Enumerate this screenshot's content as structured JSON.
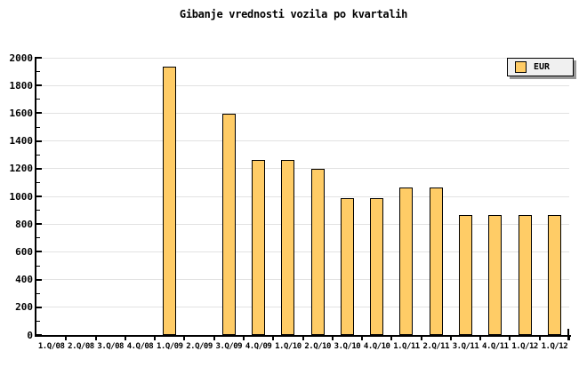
{
  "chart_data": {
    "type": "bar",
    "title": "Gibanje vrednosti vozila po kvartalih",
    "categories": [
      "1.Q/08",
      "2.Q/08",
      "3.Q/08",
      "4.Q/08",
      "1.Q/09",
      "2.Q/09",
      "3.Q/09",
      "4.Q/09",
      "1.Q/10",
      "2.Q/10",
      "3.Q/10",
      "4.Q/10",
      "1.Q/11",
      "2.Q/11",
      "3.Q/11",
      "4.Q/11",
      "1.Q/12",
      "1.Q/12"
    ],
    "series": [
      {
        "name": "EUR",
        "values": [
          null,
          null,
          null,
          null,
          1935,
          null,
          1595,
          1265,
          1265,
          1200,
          990,
          990,
          1065,
          1065,
          865,
          865,
          865,
          865
        ]
      }
    ],
    "xlabel": "",
    "ylabel": "",
    "ylim": [
      0,
      2000
    ],
    "yticks": [
      0,
      200,
      400,
      600,
      800,
      1000,
      1200,
      1400,
      1600,
      1800,
      2000
    ],
    "ytick_step": 200,
    "ytick_minor_step": 100,
    "grid": true,
    "legend": {
      "position": "top-right",
      "label": "EUR"
    },
    "colors": {
      "bar_fill": "#FFCC66",
      "bar_border": "#000000",
      "gridline": "#E2E2E2",
      "axis": "#000000",
      "background": "#FFFFFF",
      "legend_bg": "#F0F0F0",
      "legend_shadow": "#999999"
    }
  }
}
